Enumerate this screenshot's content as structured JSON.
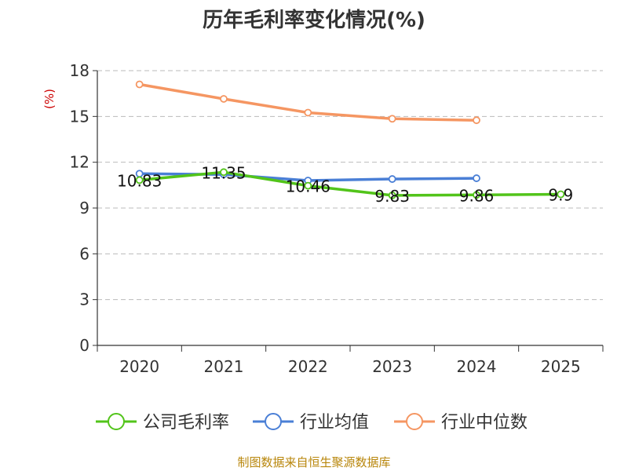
{
  "chart_data": {
    "type": "line",
    "title": "历年毛利率变化情况(%)",
    "ylabel": "(%)",
    "xlabel": "",
    "categories": [
      "2020",
      "2021",
      "2022",
      "2023",
      "2024",
      "2025"
    ],
    "yticks": [
      "0",
      "3",
      "6",
      "9",
      "12",
      "15",
      "18"
    ],
    "ylim": [
      0,
      18
    ],
    "grid": true,
    "legend_position": "bottom",
    "series": [
      {
        "name": "公司毛利率",
        "color": "#52c41a",
        "values": [
          10.83,
          11.35,
          10.46,
          9.83,
          9.86,
          9.9
        ],
        "labels": [
          "10.83",
          "11.35",
          "10.46",
          "9.83",
          "9.86",
          "9.9"
        ]
      },
      {
        "name": "行业均值",
        "color": "#4a7fd6",
        "values": [
          11.25,
          11.2,
          10.8,
          10.9,
          10.95,
          null
        ]
      },
      {
        "name": "行业中位数",
        "color": "#f59662",
        "values": [
          17.1,
          16.15,
          15.25,
          14.85,
          14.75,
          null
        ]
      }
    ],
    "source": "制图数据来自恒生聚源数据库"
  }
}
